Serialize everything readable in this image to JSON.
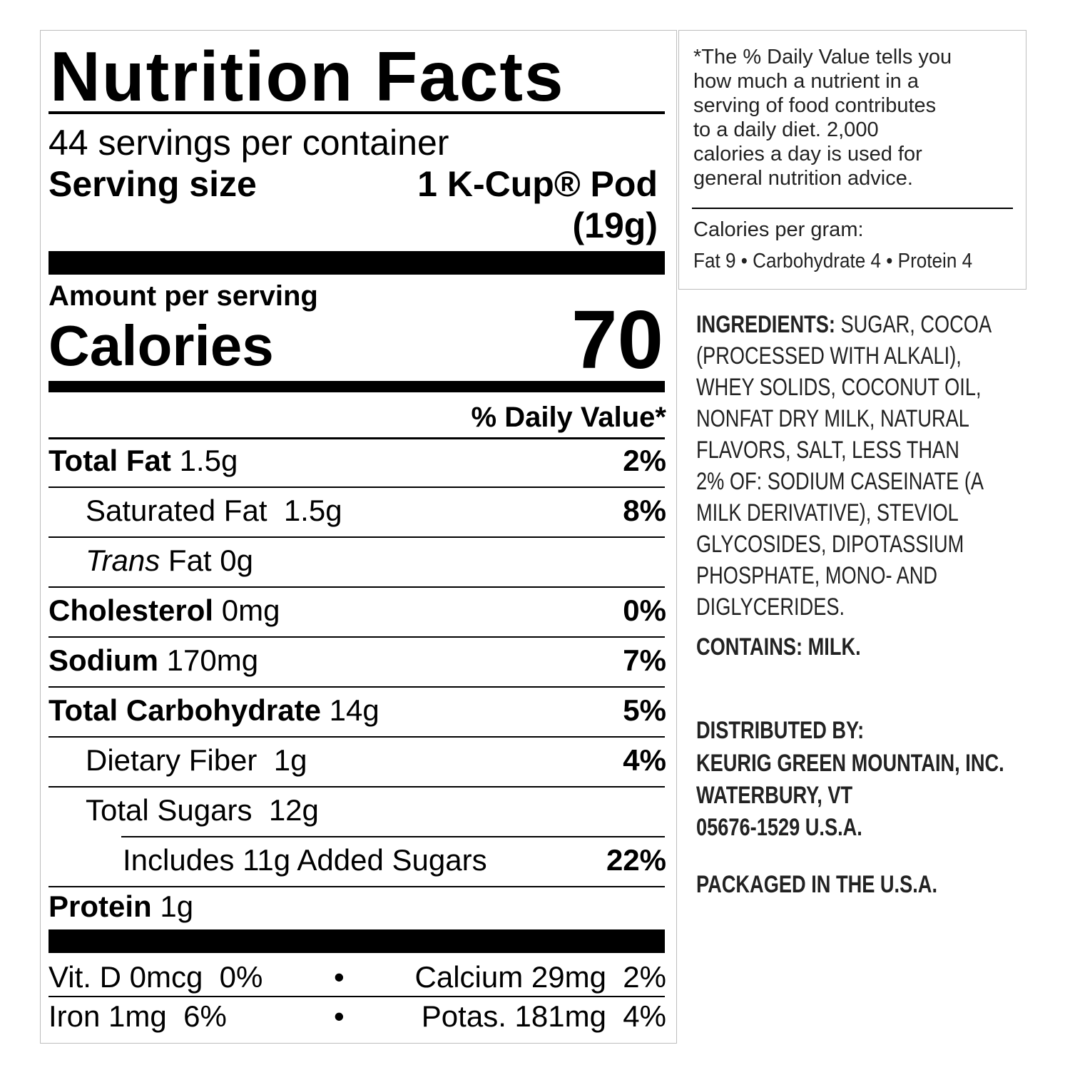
{
  "label": {
    "title": "Nutrition Facts",
    "servings_per_container": "44 servings per container",
    "serving_size_label": "Serving size",
    "serving_size_value": "1 K-Cup® Pod",
    "serving_size_weight": "(19g)",
    "amount_per_serving": "Amount per serving",
    "calories_label": "Calories",
    "calories_value": "70",
    "daily_value_header": "% Daily Value*",
    "nutrients": [
      {
        "name": "Total Fat",
        "amount": "1.5g",
        "dv": "2%"
      },
      {
        "name": "Saturated Fat",
        "amount": "1.5g",
        "dv": "8%"
      },
      {
        "name": "Trans",
        "name2": "Fat",
        "amount": "0g",
        "dv": ""
      },
      {
        "name": "Cholesterol",
        "amount": "0mg",
        "dv": "0%"
      },
      {
        "name": "Sodium",
        "amount": "170mg",
        "dv": "7%"
      },
      {
        "name": "Total Carbohydrate",
        "amount": "14g",
        "dv": "5%"
      },
      {
        "name": "Dietary Fiber",
        "amount": "1g",
        "dv": "4%"
      },
      {
        "name": "Total Sugars",
        "amount": "12g",
        "dv": ""
      },
      {
        "name": "Includes 11g Added Sugars",
        "amount": "",
        "dv": "22%"
      },
      {
        "name": "Protein",
        "amount": "1g",
        "dv": ""
      }
    ],
    "vitamins": [
      {
        "left": "Vit. D 0mcg  0%",
        "right": "Calcium 29mg  2%"
      },
      {
        "left": "Iron 1mg  6%",
        "right": "Potas. 181mg  4%"
      }
    ],
    "separator": "•"
  },
  "footnote": {
    "lines": [
      "*The % Daily Value tells you",
      "how much a nutrient in a",
      "serving of food contributes",
      "to a daily diet. 2,000",
      "calories a day is used for",
      "general nutrition advice."
    ],
    "calories_per_gram_label": "Calories per gram:",
    "calories_per_gram_values": "Fat 9 • Carbohydrate 4 • Protein 4"
  },
  "ingredients": {
    "label": "INGREDIENTS:",
    "lines": [
      " SUGAR, COCOA",
      "(PROCESSED WITH ALKALI),",
      "WHEY SOLIDS, COCONUT OIL,",
      "NONFAT DRY MILK, NATURAL",
      "FLAVORS, SALT, LESS THAN",
      "2% OF: SODIUM CASEINATE (A",
      "MILK DERIVATIVE), STEVIOL",
      "GLYCOSIDES, DIPOTASSIUM",
      "PHOSPHATE, MONO- AND",
      "DIGLYCERIDES."
    ],
    "contains": "CONTAINS: MILK."
  },
  "distributor": {
    "lines": [
      "DISTRIBUTED BY:",
      "KEURIG GREEN MOUNTAIN, INC.",
      "WATERBURY, VT",
      "05676-1529 U.S.A."
    ],
    "packaged": "PACKAGED IN THE U.S.A."
  }
}
